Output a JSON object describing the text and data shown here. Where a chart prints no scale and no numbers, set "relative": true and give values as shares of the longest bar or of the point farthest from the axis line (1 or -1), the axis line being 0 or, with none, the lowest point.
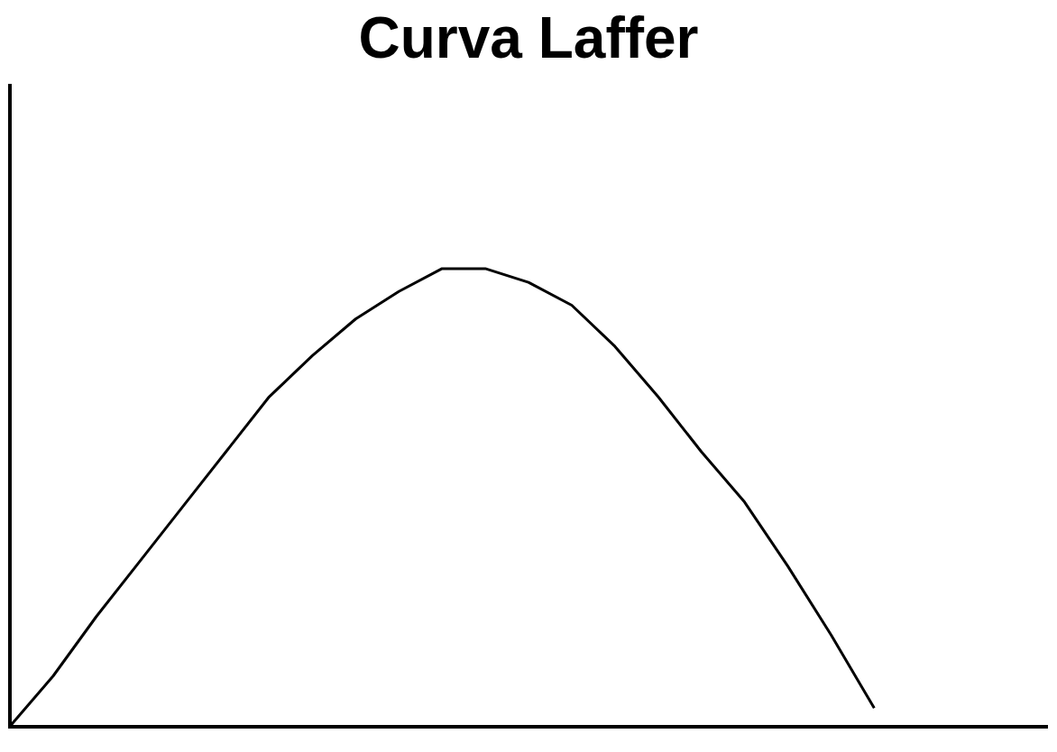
{
  "chart_data": {
    "type": "line",
    "title": "Curva Laffer",
    "relative": true,
    "categories": [
      null,
      null,
      null,
      null,
      null,
      null,
      null,
      null,
      null,
      null,
      null,
      null,
      null,
      null,
      null,
      null,
      null,
      null,
      null,
      null,
      null,
      null,
      null,
      null,
      null
    ],
    "series": [
      {
        "color": "#000000",
        "values": [
          0,
          0.11,
          0.24,
          0.36,
          0.48,
          0.6,
          0.72,
          0.81,
          0.89,
          0.95,
          1,
          1,
          0.97,
          0.92,
          0.83,
          0.72,
          0.6,
          0.49,
          0.35,
          0.2,
          0.04,
          null,
          null,
          null,
          null
        ]
      }
    ],
    "grid": false,
    "legend": false,
    "marker": "none",
    "line_style": "solid"
  }
}
